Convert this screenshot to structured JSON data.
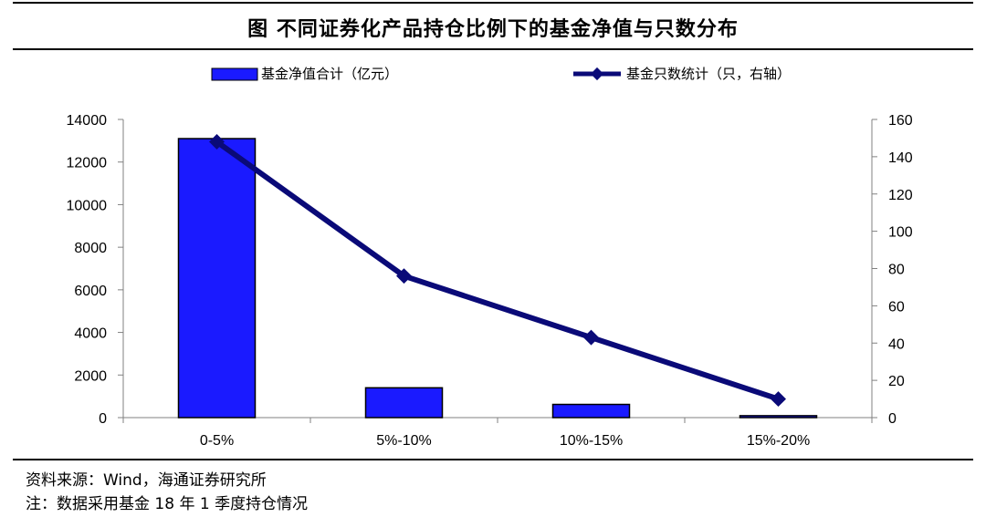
{
  "figure": {
    "title": "图  不同证券化产品持仓比例下的基金净值与只数分布",
    "source": "资料来源：Wind，海通证券研究所",
    "note": "注：数据采用基金 18 年 1 季度持仓情况"
  },
  "colors": {
    "bar": "#1a1aff",
    "line": "#0a0a78"
  },
  "chart_data": {
    "type": "bar",
    "categories": [
      "0-5%",
      "5%-10%",
      "10%-15%",
      "15%-20%"
    ],
    "series": [
      {
        "name": "基金净值合计（亿元）",
        "type": "bar",
        "axis": "left",
        "values": [
          13100,
          1400,
          620,
          90
        ]
      },
      {
        "name": "基金只数统计（只，右轴）",
        "type": "line",
        "axis": "right",
        "values": [
          148,
          76,
          43,
          10
        ]
      }
    ],
    "y_left": {
      "min": 0,
      "max": 14000,
      "ticks": [
        "0",
        "2000",
        "4000",
        "6000",
        "8000",
        "10000",
        "12000",
        "14000"
      ]
    },
    "y_right": {
      "min": 0,
      "max": 160,
      "ticks": [
        "0",
        "20",
        "40",
        "60",
        "80",
        "100",
        "120",
        "140",
        "160"
      ]
    },
    "grid": false,
    "legend_position": "top"
  }
}
